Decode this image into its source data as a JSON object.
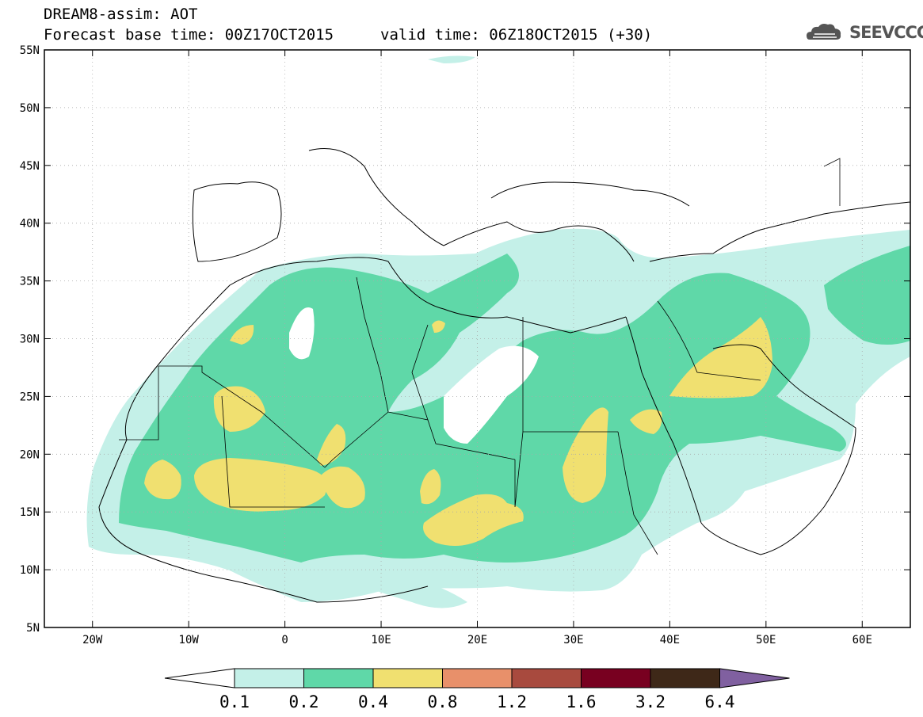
{
  "header": {
    "line1": "DREAM8-assim: AOT",
    "line2": "Forecast base time: 00Z17OCT2015",
    "valid": "valid time: 06Z18OCT2015 (+30)",
    "logo_text": "SEEVCCC"
  },
  "axes": {
    "lat_labels": [
      "55N",
      "50N",
      "45N",
      "40N",
      "35N",
      "30N",
      "25N",
      "20N",
      "15N",
      "10N",
      "5N"
    ],
    "lat_values": [
      55,
      50,
      45,
      40,
      35,
      30,
      25,
      20,
      15,
      10,
      5
    ],
    "lon_labels": [
      "20W",
      "10W",
      "0",
      "10E",
      "20E",
      "30E",
      "40E",
      "50E",
      "60E"
    ],
    "lon_values": [
      -20,
      -10,
      0,
      10,
      20,
      30,
      40,
      50,
      60
    ],
    "lon_range": [
      -25,
      65
    ],
    "lat_range": [
      5,
      55
    ]
  },
  "colorbar": {
    "labels": [
      "0.1",
      "0.2",
      "0.4",
      "0.8",
      "1.2",
      "1.6",
      "3.2",
      "6.4"
    ],
    "colors": [
      "#c4f0e8",
      "#5fd8a8",
      "#f0e070",
      "#e8906a",
      "#a84a3e",
      "#780020",
      "#3e2818",
      "#8060a0"
    ]
  },
  "colors": {
    "level1": "#c4f0e8",
    "level2": "#5fd8a8",
    "level3": "#f0e070"
  }
}
